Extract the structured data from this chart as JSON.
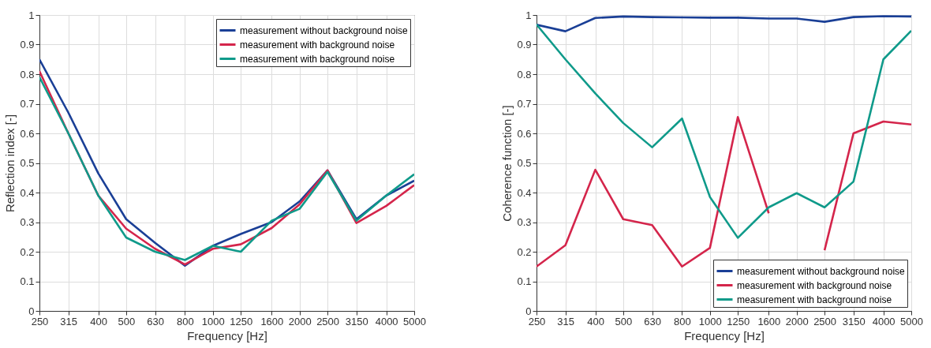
{
  "chart_data": [
    {
      "type": "line",
      "xlabel": "Frequency [Hz]",
      "ylabel": "Reflection index [-]",
      "log": "x",
      "x": [
        250,
        315,
        400,
        500,
        630,
        800,
        1000,
        1250,
        1600,
        2000,
        2500,
        3150,
        4000,
        5000
      ],
      "xlim": [
        250,
        5000
      ],
      "xticks": [
        250,
        315,
        400,
        500,
        630,
        800,
        1000,
        1250,
        1600,
        2000,
        2500,
        3150,
        4000,
        5000
      ],
      "ylim": [
        0,
        1
      ],
      "yticks": [
        0,
        0.1,
        0.2,
        0.3,
        0.4,
        0.5,
        0.6,
        0.7,
        0.8,
        0.9,
        1
      ],
      "grid": true,
      "legend": "top right",
      "marker": "none",
      "line_style": "solid",
      "series": [
        {
          "name": "measurement without background noise",
          "color": "#1a3f96",
          "values": [
            0.85,
            0.67,
            0.465,
            0.31,
            0.23,
            0.153,
            0.22,
            0.26,
            0.3,
            0.37,
            0.475,
            0.31,
            0.39,
            0.44
          ]
        },
        {
          "name": "measurement with background noise",
          "color": "#d4254b",
          "values": [
            0.81,
            0.6,
            0.39,
            0.278,
            0.21,
            0.157,
            0.21,
            0.225,
            0.28,
            0.36,
            0.475,
            0.297,
            0.355,
            0.425
          ]
        },
        {
          "name": "measurement with background noise",
          "color": "#0f9a8a",
          "values": [
            0.79,
            0.6,
            0.39,
            0.248,
            0.2,
            0.172,
            0.22,
            0.2,
            0.305,
            0.345,
            0.47,
            0.305,
            0.39,
            0.462
          ]
        }
      ]
    },
    {
      "type": "line",
      "xlabel": "Frequency [Hz]",
      "ylabel": "Coherence function [-]",
      "log": "x",
      "x": [
        250,
        315,
        400,
        500,
        630,
        800,
        1000,
        1250,
        1600,
        2000,
        2500,
        3150,
        4000,
        5000
      ],
      "xlim": [
        250,
        5000
      ],
      "xticks": [
        250,
        315,
        400,
        500,
        630,
        800,
        1000,
        1250,
        1600,
        2000,
        2500,
        3150,
        4000,
        5000
      ],
      "ylim": [
        0,
        1
      ],
      "yticks": [
        0,
        0.1,
        0.2,
        0.3,
        0.4,
        0.5,
        0.6,
        0.7,
        0.8,
        0.9,
        1
      ],
      "grid": true,
      "legend": "bottom right",
      "marker": "none",
      "line_style": "solid",
      "series": [
        {
          "name": "measurement without background noise",
          "color": "#1a3f96",
          "values": [
            0.967,
            0.945,
            0.99,
            0.995,
            0.993,
            0.992,
            0.991,
            0.991,
            0.988,
            0.988,
            0.977,
            0.993,
            0.996,
            0.995
          ]
        },
        {
          "name": "measurement with background noise",
          "color": "#d4254b",
          "values": [
            0.15,
            0.222,
            0.477,
            0.31,
            0.29,
            0.15,
            0.213,
            0.655,
            0.33,
            null,
            0.205,
            0.6,
            0.64,
            0.63
          ]
        },
        {
          "name": "measurement with background noise",
          "color": "#0f9a8a",
          "values": [
            0.968,
            0.85,
            0.735,
            0.635,
            0.553,
            0.65,
            0.385,
            0.247,
            0.35,
            0.398,
            0.35,
            0.437,
            0.85,
            0.947
          ]
        }
      ]
    }
  ]
}
